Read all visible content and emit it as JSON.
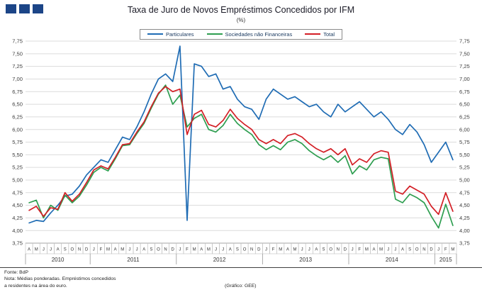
{
  "header": {
    "logo": "three-blue-squares"
  },
  "footer": {
    "fonte": "Fonte: BdP",
    "nota1": "Nota: Médias ponderadas.  Empréstimos concedidos",
    "nota2": "a residentes na área do euro.",
    "grafico": "(Gráfico: GEE)"
  },
  "chart_data": {
    "type": "line",
    "title": "Taxa de Juro de Novos Empréstimos Concedidos por IFM",
    "subtitle": "(%)",
    "ylim": [
      3.75,
      7.75
    ],
    "ytick_step": 0.25,
    "ytick_labels": [
      "3,75",
      "4,00",
      "4,25",
      "4,50",
      "4,75",
      "5,00",
      "5,25",
      "5,50",
      "5,75",
      "6,00",
      "6,25",
      "6,50",
      "6,75",
      "7,00",
      "7,25",
      "7,50",
      "7,75"
    ],
    "grid": "horizontal",
    "legend_position": "top-center",
    "x_month_labels": [
      "A",
      "M",
      "J",
      "J",
      "A",
      "S",
      "O",
      "N",
      "D",
      "J",
      "F",
      "M",
      "A",
      "M",
      "J",
      "J",
      "A",
      "S",
      "O",
      "N",
      "D",
      "J",
      "F",
      "M",
      "A",
      "M",
      "J",
      "J",
      "A",
      "S",
      "O",
      "N",
      "D",
      "J",
      "F",
      "M",
      "A",
      "M",
      "J",
      "J",
      "A",
      "S",
      "O",
      "N",
      "D",
      "J",
      "F",
      "M",
      "A",
      "M",
      "J",
      "J",
      "A",
      "S",
      "O",
      "N",
      "D",
      "J",
      "F",
      "M"
    ],
    "years": [
      {
        "label": "2010",
        "months": 9
      },
      {
        "label": "2011",
        "months": 12
      },
      {
        "label": "2012",
        "months": 12
      },
      {
        "label": "2013",
        "months": 12
      },
      {
        "label": "2014",
        "months": 12
      },
      {
        "label": "2015",
        "months": 3
      }
    ],
    "series": [
      {
        "name": "Particulares",
        "color": "#1f6cb4",
        "values": [
          4.15,
          4.2,
          4.18,
          4.35,
          4.5,
          4.68,
          4.72,
          4.88,
          5.1,
          5.25,
          5.4,
          5.35,
          5.6,
          5.85,
          5.8,
          6.05,
          6.35,
          6.7,
          7.0,
          7.1,
          6.95,
          7.65,
          4.2,
          7.3,
          7.25,
          7.05,
          7.1,
          6.8,
          6.85,
          6.6,
          6.45,
          6.4,
          6.2,
          6.6,
          6.8,
          6.7,
          6.6,
          6.65,
          6.55,
          6.45,
          6.5,
          6.35,
          6.25,
          6.5,
          6.35,
          6.45,
          6.55,
          6.4,
          6.25,
          6.35,
          6.2,
          6.0,
          5.9,
          6.1,
          5.95,
          5.7,
          5.35,
          5.55,
          5.75,
          5.4
        ]
      },
      {
        "name": "Sociedades não Financeiras",
        "color": "#2e9e50",
        "values": [
          4.55,
          4.6,
          4.25,
          4.5,
          4.4,
          4.7,
          4.55,
          4.68,
          4.9,
          5.15,
          5.25,
          5.18,
          5.42,
          5.68,
          5.7,
          5.92,
          6.12,
          6.42,
          6.7,
          6.88,
          6.5,
          6.68,
          6.05,
          6.22,
          6.3,
          6.0,
          5.95,
          6.08,
          6.3,
          6.12,
          6.0,
          5.9,
          5.7,
          5.6,
          5.68,
          5.6,
          5.75,
          5.8,
          5.72,
          5.58,
          5.48,
          5.4,
          5.48,
          5.35,
          5.48,
          5.12,
          5.28,
          5.2,
          5.4,
          5.45,
          5.42,
          4.62,
          4.55,
          4.72,
          4.65,
          4.55,
          4.28,
          4.05,
          4.52,
          4.1
        ]
      },
      {
        "name": "Total",
        "color": "#d31f26",
        "values": [
          4.4,
          4.48,
          4.28,
          4.45,
          4.42,
          4.75,
          4.58,
          4.72,
          4.95,
          5.2,
          5.28,
          5.22,
          5.45,
          5.7,
          5.72,
          5.95,
          6.15,
          6.45,
          6.72,
          6.85,
          6.75,
          6.8,
          5.9,
          6.3,
          6.38,
          6.1,
          6.05,
          6.18,
          6.4,
          6.22,
          6.1,
          6.0,
          5.8,
          5.72,
          5.8,
          5.72,
          5.88,
          5.92,
          5.85,
          5.72,
          5.62,
          5.55,
          5.62,
          5.5,
          5.62,
          5.3,
          5.42,
          5.35,
          5.52,
          5.58,
          5.55,
          4.78,
          4.72,
          4.88,
          4.8,
          4.72,
          4.48,
          4.32,
          4.75,
          4.38
        ]
      }
    ]
  }
}
